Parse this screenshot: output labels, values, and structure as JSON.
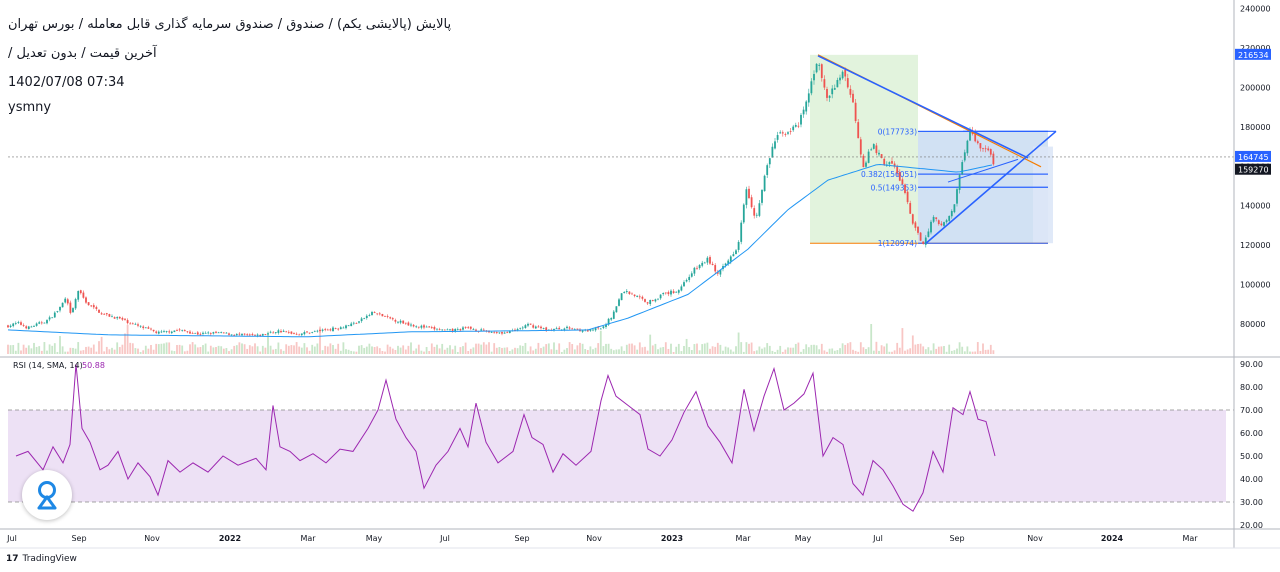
{
  "header": {
    "title": "پالایش (پالایشی یکم) / صندوق / صندوق سرمایه گذاری قابل معامله / بورس تهران",
    "subtitle": "آخرین قیمت / بدون تعدیل /",
    "datetime": "1402/07/08 07:34",
    "user": "ysmny"
  },
  "footer": {
    "brand": "TradingView",
    "brand_mark": "17"
  },
  "colors": {
    "up": "#26a69a",
    "down": "#ef5350",
    "ma": "#2196f3",
    "trend": "#2962ff",
    "trend_orange": "#f57c00",
    "rsi": "#9c27b0",
    "rsi_band": "#ede1f5",
    "fib_green": "#d8efd1",
    "fib_blue": "#c9dcf1"
  },
  "chart_data": [
    {
      "type": "candlestick",
      "title": "",
      "x_ticks": [
        "Jul",
        "Sep",
        "Nov",
        "2022",
        "Mar",
        "May",
        "Jul",
        "Sep",
        "Nov",
        "2023",
        "Mar",
        "May",
        "Jul",
        "Sep",
        "Nov",
        "2024",
        "Mar"
      ],
      "y_ticks": [
        80000,
        100000,
        120000,
        140000,
        160000,
        180000,
        200000,
        220000,
        240000
      ],
      "ylim": [
        68000,
        242000
      ],
      "price_labels": [
        {
          "value": 216534,
          "text": "216534",
          "color": "#2962ff"
        },
        {
          "value": 164745,
          "text": "164745",
          "color": "#2962ff"
        },
        {
          "value": 159270,
          "text": "159270",
          "color": "#131722"
        }
      ],
      "close_series": [
        [
          0,
          79000
        ],
        [
          10,
          80500
        ],
        [
          20,
          78000
        ],
        [
          30,
          80000
        ],
        [
          40,
          82000
        ],
        [
          50,
          87000
        ],
        [
          58,
          93000
        ],
        [
          63,
          84000
        ],
        [
          70,
          97000
        ],
        [
          80,
          90000
        ],
        [
          95,
          85000
        ],
        [
          110,
          83000
        ],
        [
          130,
          79000
        ],
        [
          150,
          75500
        ],
        [
          170,
          77000
        ],
        [
          190,
          75000
        ],
        [
          210,
          75500
        ],
        [
          230,
          74500
        ],
        [
          250,
          74000
        ],
        [
          270,
          76500
        ],
        [
          290,
          75000
        ],
        [
          310,
          76500
        ],
        [
          330,
          78000
        ],
        [
          350,
          81000
        ],
        [
          365,
          86000
        ],
        [
          380,
          83000
        ],
        [
          400,
          80000
        ],
        [
          420,
          78000
        ],
        [
          440,
          76500
        ],
        [
          460,
          78000
        ],
        [
          480,
          76000
        ],
        [
          500,
          75500
        ],
        [
          520,
          79500
        ],
        [
          540,
          77000
        ],
        [
          560,
          78000
        ],
        [
          580,
          76500
        ],
        [
          595,
          78000
        ],
        [
          605,
          85000
        ],
        [
          615,
          97000
        ],
        [
          625,
          95000
        ],
        [
          640,
          91000
        ],
        [
          655,
          95000
        ],
        [
          670,
          97000
        ],
        [
          685,
          107000
        ],
        [
          700,
          113000
        ],
        [
          710,
          105000
        ],
        [
          720,
          112000
        ],
        [
          730,
          120000
        ],
        [
          738,
          150000
        ],
        [
          748,
          133000
        ],
        [
          758,
          158000
        ],
        [
          768,
          175000
        ],
        [
          780,
          178000
        ],
        [
          790,
          180000
        ],
        [
          800,
          195000
        ],
        [
          810,
          216000
        ],
        [
          818,
          194000
        ],
        [
          826,
          199000
        ],
        [
          835,
          209000
        ],
        [
          845,
          192000
        ],
        [
          855,
          160000
        ],
        [
          865,
          171000
        ],
        [
          875,
          162000
        ],
        [
          885,
          161000
        ],
        [
          895,
          150000
        ],
        [
          905,
          130000
        ],
        [
          915,
          121000
        ],
        [
          925,
          134000
        ],
        [
          935,
          130000
        ],
        [
          945,
          137000
        ],
        [
          955,
          165000
        ],
        [
          962,
          178000
        ],
        [
          970,
          171000
        ],
        [
          980,
          168000
        ],
        [
          987,
          160000
        ]
      ],
      "ma_series": [
        [
          0,
          77000
        ],
        [
          100,
          74500
        ],
        [
          200,
          74000
        ],
        [
          300,
          73500
        ],
        [
          400,
          76000
        ],
        [
          500,
          76500
        ],
        [
          580,
          77000
        ],
        [
          620,
          83000
        ],
        [
          680,
          95000
        ],
        [
          740,
          118000
        ],
        [
          780,
          138000
        ],
        [
          820,
          153000
        ],
        [
          870,
          161000
        ],
        [
          910,
          159000
        ],
        [
          950,
          157000
        ],
        [
          987,
          161000
        ]
      ],
      "volume": {
        "color_up": "#c8e6c9",
        "color_down": "#f8c6c4",
        "note": "small volume bars along price pane bottom"
      },
      "fib_retracement": [
        {
          "ratio": "0",
          "value": 177733,
          "label": "0(177733)"
        },
        {
          "ratio": "0.382",
          "value": 156051,
          "label": "0.382(156051)"
        },
        {
          "ratio": "0.5",
          "value": 149353,
          "label": "0.5(149353)"
        },
        {
          "ratio": "1",
          "value": 120974,
          "label": "1(120974)"
        }
      ],
      "trendlines": [
        {
          "from": [
            810,
            216534
          ],
          "to": [
            1020,
            164745
          ],
          "color": "orange_blue"
        },
        {
          "from": [
            918,
            120974
          ],
          "to": [
            1048,
            177733
          ],
          "color": "blue"
        }
      ]
    },
    {
      "type": "line",
      "title": "",
      "legend": {
        "label": "RSI (14, SMA, 14)",
        "value": "50.88"
      },
      "y_ticks": [
        "90.00",
        "80.00",
        "70.00",
        "60.00",
        "50.00",
        "40.00",
        "30.00",
        "20.00"
      ],
      "ylim": [
        18,
        92
      ],
      "band": [
        30,
        70
      ],
      "series": [
        [
          8,
          50
        ],
        [
          20,
          52
        ],
        [
          35,
          44
        ],
        [
          45,
          54
        ],
        [
          55,
          47
        ],
        [
          62,
          55
        ],
        [
          68,
          90
        ],
        [
          74,
          62
        ],
        [
          82,
          56
        ],
        [
          92,
          44
        ],
        [
          100,
          46
        ],
        [
          110,
          52
        ],
        [
          120,
          40
        ],
        [
          130,
          47
        ],
        [
          142,
          41
        ],
        [
          150,
          33
        ],
        [
          160,
          48
        ],
        [
          172,
          43
        ],
        [
          185,
          47
        ],
        [
          200,
          43
        ],
        [
          215,
          50
        ],
        [
          230,
          46
        ],
        [
          248,
          49
        ],
        [
          258,
          44
        ],
        [
          265,
          72
        ],
        [
          272,
          54
        ],
        [
          282,
          52
        ],
        [
          292,
          48
        ],
        [
          305,
          51
        ],
        [
          318,
          47
        ],
        [
          332,
          53
        ],
        [
          345,
          52
        ],
        [
          360,
          62
        ],
        [
          370,
          70
        ],
        [
          378,
          83
        ],
        [
          388,
          66
        ],
        [
          398,
          58
        ],
        [
          408,
          52
        ],
        [
          416,
          36
        ],
        [
          428,
          46
        ],
        [
          440,
          52
        ],
        [
          452,
          62
        ],
        [
          460,
          54
        ],
        [
          468,
          73
        ],
        [
          478,
          56
        ],
        [
          490,
          47
        ],
        [
          505,
          52
        ],
        [
          516,
          68
        ],
        [
          524,
          58
        ],
        [
          535,
          55
        ],
        [
          545,
          43
        ],
        [
          555,
          51
        ],
        [
          568,
          46
        ],
        [
          583,
          52
        ],
        [
          593,
          74
        ],
        [
          600,
          85
        ],
        [
          608,
          76
        ],
        [
          620,
          72
        ],
        [
          632,
          68
        ],
        [
          640,
          53
        ],
        [
          652,
          50
        ],
        [
          664,
          57
        ],
        [
          676,
          69
        ],
        [
          688,
          78
        ],
        [
          700,
          63
        ],
        [
          712,
          56
        ],
        [
          724,
          47
        ],
        [
          736,
          79
        ],
        [
          746,
          61
        ],
        [
          756,
          76
        ],
        [
          766,
          88
        ],
        [
          776,
          70
        ],
        [
          786,
          73
        ],
        [
          796,
          77
        ],
        [
          805,
          86
        ],
        [
          815,
          50
        ],
        [
          825,
          58
        ],
        [
          835,
          55
        ],
        [
          845,
          38
        ],
        [
          855,
          33
        ],
        [
          865,
          48
        ],
        [
          875,
          44
        ],
        [
          885,
          37
        ],
        [
          895,
          29
        ],
        [
          905,
          26
        ],
        [
          915,
          34
        ],
        [
          925,
          52
        ],
        [
          935,
          43
        ],
        [
          945,
          71
        ],
        [
          955,
          68
        ],
        [
          962,
          78
        ],
        [
          970,
          66
        ],
        [
          978,
          65
        ],
        [
          987,
          50
        ]
      ]
    }
  ]
}
